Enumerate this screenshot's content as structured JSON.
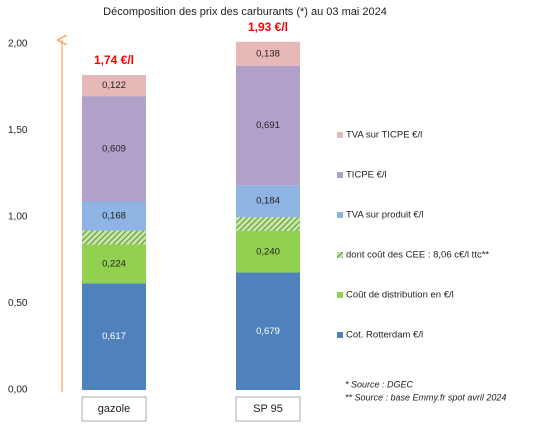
{
  "chart_data": {
    "type": "stacked-bar",
    "title": "Décomposition des prix des carburants (*) au 03 mai 2024",
    "categories": [
      "gazole",
      "SP 95"
    ],
    "ylim": [
      0,
      2
    ],
    "yticks": [
      {
        "value": 0,
        "label": "0,00"
      },
      {
        "value": 0.5,
        "label": "0,50"
      },
      {
        "value": 1,
        "label": "1,00"
      },
      {
        "value": 1.5,
        "label": "1,50"
      },
      {
        "value": 2,
        "label": "2,00"
      }
    ],
    "series": [
      {
        "name": "Cot. Rotterdam €/l",
        "color": "#4f81bd",
        "values": [
          0.617,
          0.679
        ],
        "value_labels": [
          "0,617",
          "0,679"
        ]
      },
      {
        "name": "Coût de distribution en €/l",
        "color": "#92d050",
        "values": [
          0.224,
          0.24
        ],
        "value_labels": [
          "0,224",
          "0,240"
        ]
      },
      {
        "name": "dont coût des CEE : 8,06 c€/l ttc**",
        "color": "#5b9a3c",
        "pattern": "hatch",
        "values": [
          0.0806,
          0.0806
        ]
      },
      {
        "name": "TVA sur produit €/l",
        "color": "#8db4e2",
        "values": [
          0.168,
          0.184
        ],
        "value_labels": [
          "0,168",
          "0,184"
        ]
      },
      {
        "name": "TICPE €/l",
        "color": "#b1a0c7",
        "values": [
          0.609,
          0.691
        ],
        "value_labels": [
          "0,609",
          "0,691"
        ]
      },
      {
        "name": "TVA sur TICPE €/l",
        "color": "#e6b8b7",
        "values": [
          0.122,
          0.138
        ],
        "value_labels": [
          "0,122",
          "0,138"
        ]
      }
    ],
    "totals": {
      "values": [
        1.74,
        1.93
      ],
      "value_labels": [
        "1,74 €/l",
        "1,93 €/l"
      ],
      "color": "#ff0000"
    },
    "notes": [
      "* Source : DGEC",
      "** Source : base Emmy.fr spot avril 2024"
    ]
  }
}
